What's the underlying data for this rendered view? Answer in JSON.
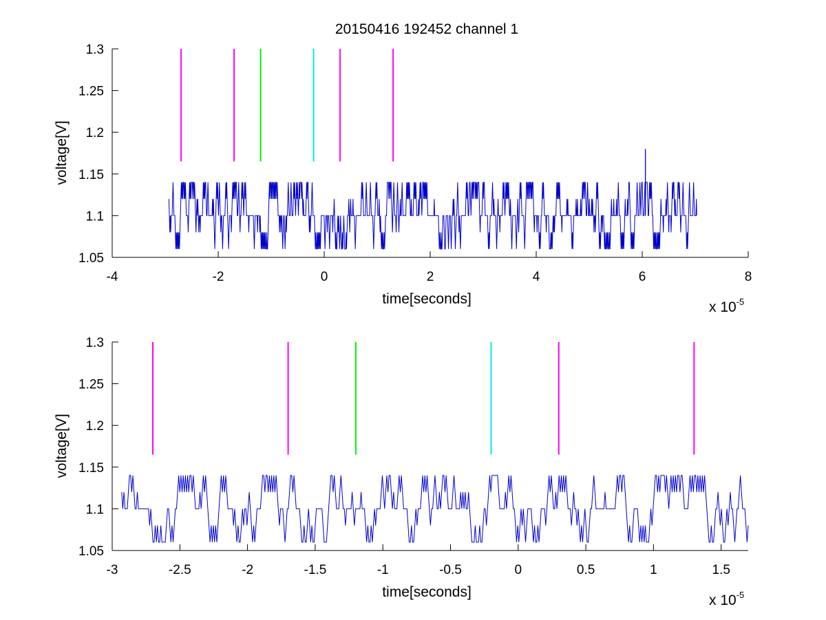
{
  "figure": {
    "title": "20150416 192452 channel 1"
  },
  "colors": {
    "signal": "#0000cc",
    "magenta": "#ff00ff",
    "green": "#00ee00",
    "cyan": "#00eeee",
    "axis": "#000000",
    "background": "#ffffff"
  },
  "chart_data": [
    {
      "type": "line",
      "title": "20150416 192452 channel 1",
      "xlabel": "time[seconds]",
      "ylabel": "voltage[V]",
      "x_multiplier": "x 10",
      "x_exponent": "-5",
      "xlim": [
        -4,
        8
      ],
      "ylim": [
        1.05,
        1.3
      ],
      "xticks": [
        "-4",
        "-2",
        "0",
        "2",
        "4",
        "6",
        "8"
      ],
      "xtick_values": [
        -4,
        -2,
        0,
        2,
        4,
        6,
        8
      ],
      "yticks": [
        "1.05",
        "1.1",
        "1.15",
        "1.2",
        "1.25",
        "1.3"
      ],
      "ytick_values": [
        1.05,
        1.1,
        1.15,
        1.2,
        1.25,
        1.3
      ],
      "grid": false,
      "series": [
        {
          "color": "signal",
          "description_values": "quantized voltage trace, levels 1.06 / 1.08 / 1.1 / 1.12 / 1.14 V",
          "x_range": [
            -2.93,
            7.03
          ],
          "levels": [
            1.06,
            1.08,
            1.1,
            1.12,
            1.14
          ],
          "peak": {
            "x": 6.06,
            "y": 1.18
          }
        }
      ],
      "markers": [
        {
          "x": -2.7,
          "y_from": 1.165,
          "y_to": 1.3,
          "color": "magenta"
        },
        {
          "x": -1.7,
          "y_from": 1.165,
          "y_to": 1.3,
          "color": "magenta"
        },
        {
          "x": -1.2,
          "y_from": 1.165,
          "y_to": 1.3,
          "color": "green"
        },
        {
          "x": -0.2,
          "y_from": 1.165,
          "y_to": 1.3,
          "color": "cyan"
        },
        {
          "x": 0.3,
          "y_from": 1.165,
          "y_to": 1.3,
          "color": "magenta"
        },
        {
          "x": 1.3,
          "y_from": 1.165,
          "y_to": 1.3,
          "color": "magenta"
        }
      ]
    },
    {
      "type": "line",
      "title": "",
      "xlabel": "time[seconds]",
      "ylabel": "voltage[V]",
      "x_multiplier": "x 10",
      "x_exponent": "-5",
      "xlim": [
        -3,
        1.7
      ],
      "ylim": [
        1.05,
        1.3
      ],
      "xticks": [
        "-3",
        "-2.5",
        "-2",
        "-1.5",
        "-1",
        "-0.5",
        "0",
        "0.5",
        "1",
        "1.5"
      ],
      "xtick_values": [
        -3,
        -2.5,
        -2,
        -1.5,
        -1,
        -0.5,
        0,
        0.5,
        1,
        1.5
      ],
      "yticks": [
        "1.05",
        "1.1",
        "1.15",
        "1.2",
        "1.25",
        "1.3"
      ],
      "ytick_values": [
        1.05,
        1.1,
        1.15,
        1.2,
        1.25,
        1.3
      ],
      "grid": false,
      "series": [
        {
          "color": "signal",
          "description_values": "zoomed quantized voltage trace, levels 1.06 / 1.08 / 1.1 / 1.12 / 1.14 V",
          "x_range": [
            -2.93,
            1.7
          ],
          "levels": [
            1.06,
            1.08,
            1.1,
            1.12,
            1.14
          ]
        }
      ],
      "markers": [
        {
          "x": -2.7,
          "y_from": 1.165,
          "y_to": 1.3,
          "color": "magenta"
        },
        {
          "x": -1.7,
          "y_from": 1.165,
          "y_to": 1.3,
          "color": "magenta"
        },
        {
          "x": -1.2,
          "y_from": 1.165,
          "y_to": 1.3,
          "color": "green"
        },
        {
          "x": -0.2,
          "y_from": 1.165,
          "y_to": 1.3,
          "color": "cyan"
        },
        {
          "x": 0.3,
          "y_from": 1.165,
          "y_to": 1.3,
          "color": "magenta"
        },
        {
          "x": 1.3,
          "y_from": 1.165,
          "y_to": 1.3,
          "color": "magenta"
        }
      ]
    }
  ]
}
